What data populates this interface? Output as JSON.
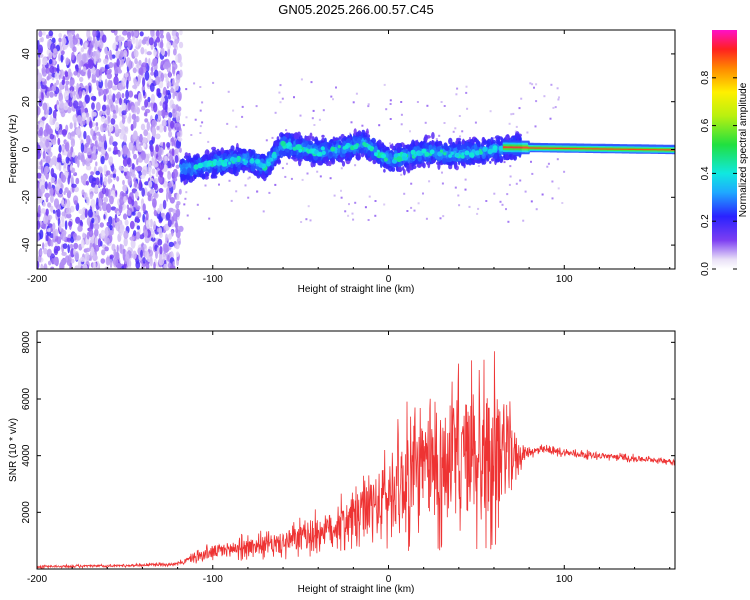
{
  "chart_data": [
    {
      "type": "heatmap",
      "title": "GN05.2025.266.00.57.C45",
      "xlabel": "Height of straight line (km)",
      "ylabel": "Frequency (Hz)",
      "xlim": [
        -200,
        163
      ],
      "ylim": [
        -50,
        50
      ],
      "xticks": [
        -200,
        -100,
        0,
        100
      ],
      "xtick_labels": [
        "-200",
        "-100",
        "0",
        "100"
      ],
      "yticks": [
        -40,
        -20,
        0,
        20,
        40
      ],
      "ytick_labels": [
        "-40",
        "-20",
        "0",
        "20",
        "40"
      ],
      "grid": false,
      "colorbar": {
        "label": "Normalized spectral amplitude",
        "range": [
          0,
          1
        ],
        "ticks": [
          0.0,
          0.2,
          0.4,
          0.6,
          0.8
        ],
        "tick_labels": [
          "0.0",
          "0.2",
          "0.4",
          "0.6",
          "0.8"
        ],
        "placement": "right"
      },
      "regions": [
        {
          "name": "broadband noise",
          "x_range": [
            -200,
            -118
          ],
          "freq_range": [
            -50,
            50
          ],
          "amplitude": 0.2
        },
        {
          "name": "band",
          "x_range": [
            -118,
            75
          ],
          "freq_center": [
            {
              "x": -115,
              "f": -8
            },
            {
              "x": -100,
              "f": -6
            },
            {
              "x": -80,
              "f": -4
            },
            {
              "x": -70,
              "f": -7
            },
            {
              "x": -60,
              "f": 2
            },
            {
              "x": -40,
              "f": -1
            },
            {
              "x": -20,
              "f": 1
            },
            {
              "x": -15,
              "f": 3
            },
            {
              "x": -5,
              "f": -2
            },
            {
              "x": 0,
              "f": -4
            },
            {
              "x": 10,
              "f": -3
            },
            {
              "x": 20,
              "f": -1
            },
            {
              "x": 40,
              "f": -2
            },
            {
              "x": 60,
              "f": 0
            },
            {
              "x": 75,
              "f": 1
            }
          ],
          "half_width_hz": 8,
          "amplitude": 0.35
        },
        {
          "name": "tone",
          "x_range": [
            65,
            163
          ],
          "freq_center": [
            {
              "x": 65,
              "f": 1
            },
            {
              "x": 163,
              "f": 0
            }
          ],
          "half_width_hz": 1.5,
          "amplitude": 0.9
        }
      ]
    },
    {
      "type": "line",
      "title": "",
      "xlabel": "Height of straight line (km)",
      "ylabel": "SNR (10 * v/v)",
      "xlim": [
        -200,
        163
      ],
      "ylim": [
        0,
        8400
      ],
      "xticks": [
        -200,
        -100,
        0,
        100
      ],
      "xtick_labels": [
        "-200",
        "-100",
        "0",
        "100"
      ],
      "yticks": [
        2000,
        4000,
        6000,
        8000
      ],
      "ytick_labels": [
        "2000",
        "4000",
        "6000",
        "8000"
      ],
      "grid": false,
      "series": [
        {
          "name": "SNR",
          "color": "#ee3333",
          "x": [
            -200,
            -150,
            -120,
            -110,
            -100,
            -90,
            -80,
            -70,
            -60,
            -50,
            -40,
            -30,
            -20,
            -10,
            0,
            10,
            20,
            30,
            40,
            50,
            60,
            70,
            75,
            80,
            90,
            100,
            120,
            140,
            163
          ],
          "envelope": [
            80,
            120,
            180,
            420,
            600,
            700,
            800,
            850,
            900,
            1100,
            1300,
            1500,
            1800,
            2100,
            2600,
            3200,
            3500,
            3700,
            3900,
            4000,
            4100,
            4100,
            4000,
            4150,
            4200,
            4100,
            4000,
            3900,
            3800
          ],
          "spread": [
            60,
            60,
            80,
            250,
            400,
            450,
            500,
            550,
            650,
            800,
            900,
            1000,
            1300,
            1700,
            2200,
            2700,
            3000,
            3300,
            3600,
            3800,
            3800,
            2000,
            600,
            250,
            200,
            180,
            170,
            160,
            150
          ]
        }
      ]
    }
  ]
}
